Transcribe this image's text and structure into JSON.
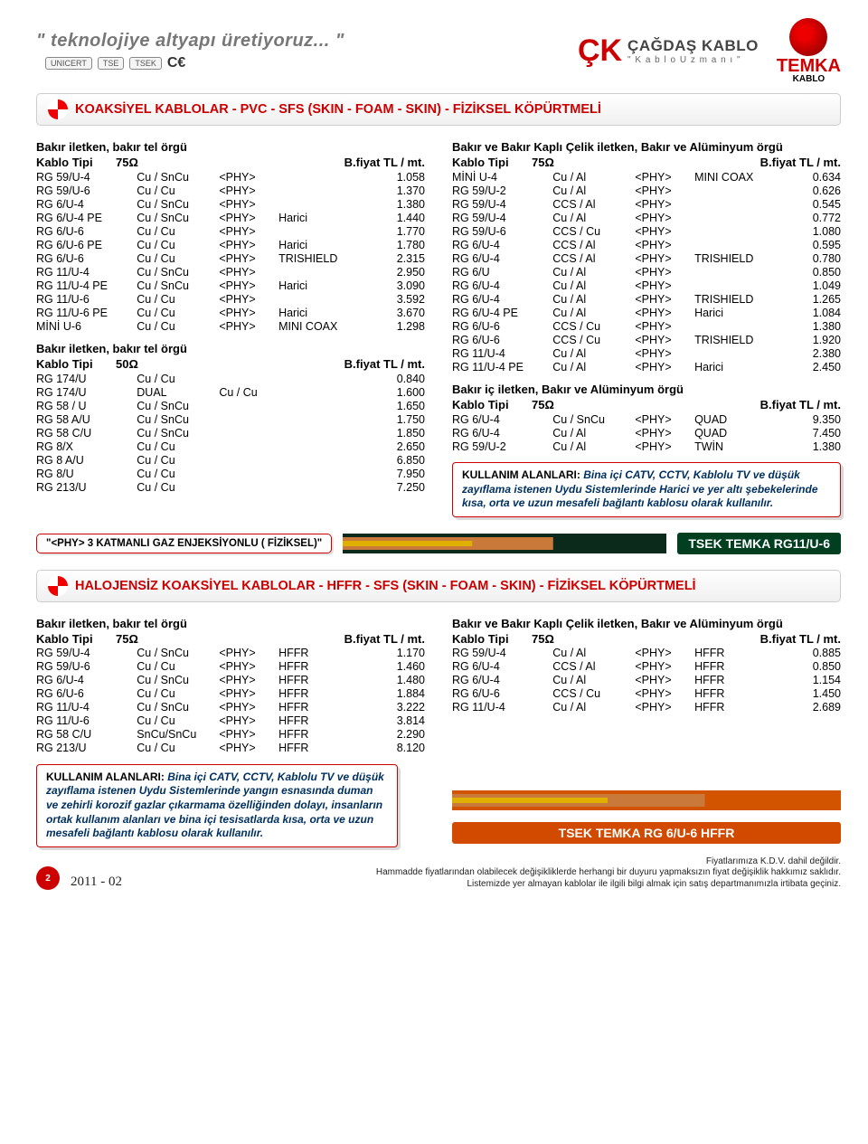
{
  "tagline": "\" teknolojiye altyapı üretiyoruz... \"",
  "logos": {
    "ck_main": "ÇAĞDAŞ KABLO",
    "ck_sub": "\" K a b l o  U z m a n ı \"",
    "temka": "TEMKA",
    "temka_sub": "KABLO",
    "certs": [
      "UNICERT",
      "TSE",
      "TSEK"
    ],
    "ce": "C€"
  },
  "section1": {
    "title": "KOAKSİYEL KABLOLAR - PVC - SFS (SKIN - FOAM - SKIN) - FİZİKSEL KÖPÜRTMELİ",
    "left_a": {
      "sub": "Bakır iletken, bakır tel örgü",
      "hdr_c1": "Kablo Tipi",
      "hdr_c2": "75Ω",
      "hdr_c3": "B.fiyat TL / mt.",
      "rows": [
        [
          "RG 59/U-4",
          "Cu / SnCu",
          "<PHY>",
          "",
          "1.058"
        ],
        [
          "RG 59/U-6",
          "Cu / Cu",
          "<PHY>",
          "",
          "1.370"
        ],
        [
          "RG 6/U-4",
          "Cu / SnCu",
          "<PHY>",
          "",
          "1.380"
        ],
        [
          "RG 6/U-4 PE",
          "Cu / SnCu",
          "<PHY>",
          "Harici",
          "1.440"
        ],
        [
          "RG 6/U-6",
          "Cu / Cu",
          "<PHY>",
          "",
          "1.770"
        ],
        [
          "RG 6/U-6 PE",
          "Cu / Cu",
          "<PHY>",
          "Harici",
          "1.780"
        ],
        [
          "RG 6/U-6",
          "Cu / Cu",
          "<PHY>",
          "TRISHIELD",
          "2.315"
        ],
        [
          "RG 11/U-4",
          "Cu / SnCu",
          "<PHY>",
          "",
          "2.950"
        ],
        [
          "RG 11/U-4 PE",
          "Cu / SnCu",
          "<PHY>",
          "Harici",
          "3.090"
        ],
        [
          "RG 11/U-6",
          "Cu / Cu",
          "<PHY>",
          "",
          "3.592"
        ],
        [
          "RG 11/U-6 PE",
          "Cu / Cu",
          "<PHY>",
          "Harici",
          "3.670"
        ],
        [
          "MİNİ U-6",
          "Cu / Cu",
          "<PHY>",
          "MINI COAX",
          "1.298"
        ]
      ]
    },
    "left_b": {
      "sub": "Bakır iletken, bakır tel örgü",
      "hdr_c1": "Kablo Tipi",
      "hdr_c2": "50Ω",
      "hdr_c3": "B.fiyat TL / mt.",
      "rows": [
        [
          "RG 174/U",
          "Cu / Cu",
          "",
          "",
          "0.840"
        ],
        [
          "RG 174/U",
          "DUAL",
          "Cu / Cu",
          "",
          "1.600"
        ],
        [
          "RG 58 / U",
          "Cu / SnCu",
          "",
          "",
          "1.650"
        ],
        [
          "RG 58 A/U",
          "Cu / SnCu",
          "",
          "",
          "1.750"
        ],
        [
          "RG 58 C/U",
          "Cu / SnCu",
          "",
          "",
          "1.850"
        ],
        [
          "RG 8/X",
          "Cu / Cu",
          "",
          "",
          "2.650"
        ],
        [
          "RG 8 A/U",
          "Cu / Cu",
          "",
          "",
          "6.850"
        ],
        [
          "RG 8/U",
          "Cu / Cu",
          "",
          "",
          "7.950"
        ],
        [
          "RG 213/U",
          "Cu / Cu",
          "",
          "",
          "7.250"
        ]
      ]
    },
    "right_a": {
      "sub": "Bakır ve Bakır Kaplı Çelik iletken, Bakır ve Alüminyum örgü",
      "hdr_c1": "Kablo Tipi",
      "hdr_c2": "75Ω",
      "hdr_c3": "B.fiyat TL / mt.",
      "rows": [
        [
          "MİNİ U-4",
          "Cu / Al",
          "<PHY>",
          "MINI COAX",
          "0.634"
        ],
        [
          "RG 59/U-2",
          "Cu / Al",
          "<PHY>",
          "",
          "0.626"
        ],
        [
          "RG 59/U-4",
          "CCS / Al",
          "<PHY>",
          "",
          "0.545"
        ],
        [
          "RG 59/U-4",
          "Cu / Al",
          "<PHY>",
          "",
          "0.772"
        ],
        [
          "RG 59/U-6",
          "CCS / Cu",
          "<PHY>",
          "",
          "1.080"
        ],
        [
          "RG 6/U-4",
          "CCS / Al",
          "<PHY>",
          "",
          "0.595"
        ],
        [
          "RG 6/U-4",
          "CCS / Al",
          "<PHY>",
          "TRISHIELD",
          "0.780"
        ],
        [
          "RG 6/U",
          "Cu / Al",
          "<PHY>",
          "",
          "0.850"
        ],
        [
          "RG 6/U-4",
          "Cu / Al",
          "<PHY>",
          "",
          "1.049"
        ],
        [
          "RG 6/U-4",
          "Cu / Al",
          "<PHY>",
          "TRISHIELD",
          "1.265"
        ],
        [
          "RG 6/U-4 PE",
          "Cu / Al",
          "<PHY>",
          "Harici",
          "1.084"
        ],
        [
          "RG 6/U-6",
          "CCS / Cu",
          "<PHY>",
          "",
          "1.380"
        ],
        [
          "RG 6/U-6",
          "CCS / Cu",
          "<PHY>",
          "TRISHIELD",
          "1.920"
        ],
        [
          "RG 11/U-4",
          "Cu / Al",
          "<PHY>",
          "",
          "2.380"
        ],
        [
          "RG 11/U-4 PE",
          "Cu / Al",
          "<PHY>",
          "Harici",
          "2.450"
        ]
      ]
    },
    "right_b": {
      "sub": "Bakır iç iletken, Bakır ve Alüminyum örgü",
      "hdr_c1": "Kablo Tipi",
      "hdr_c2": "75Ω",
      "hdr_c3": "B.fiyat TL / mt.",
      "rows": [
        [
          "RG 6/U-4",
          "Cu / SnCu",
          "<PHY>",
          "QUAD",
          "9.350"
        ],
        [
          "RG 6/U-4",
          "Cu / Al",
          "<PHY>",
          "QUAD",
          "7.450"
        ],
        [
          "RG 59/U-2",
          "Cu / Al",
          "<PHY>",
          "TWİN",
          "1.380"
        ]
      ]
    },
    "usage": {
      "title": "KULLANIM ALANLARI:",
      "body": "Bina içi CATV, CCTV, Kablolu TV ve düşük zayıflama istenen Uydu Sistemlerinde Harici ve yer altı şebekelerinde kısa, orta ve uzun mesafeli bağlantı kablosu olarak kullanılır."
    }
  },
  "cable1": {
    "phy": "\"<PHY> 3 KATMANLI GAZ ENJEKSİYONLU ( FİZİKSEL)\"",
    "label": "TSEK TEMKA RG11/U-6",
    "colors": {
      "jacket": "#0b2a1b",
      "braid": "#c97a3a",
      "core": "#e0b000"
    }
  },
  "section2": {
    "title": "HALOJENSİZ KOAKSİYEL KABLOLAR - HFFR - SFS (SKIN - FOAM - SKIN) - FİZİKSEL KÖPÜRTMELİ",
    "left": {
      "sub": "Bakır iletken, bakır tel örgü",
      "hdr_c1": "Kablo Tipi",
      "hdr_c2": "75Ω",
      "hdr_c3": "B.fiyat TL / mt.",
      "rows": [
        [
          "RG 59/U-4",
          "Cu / SnCu",
          "<PHY>",
          "HFFR",
          "1.170"
        ],
        [
          "RG 59/U-6",
          "Cu / Cu",
          "<PHY>",
          "HFFR",
          "1.460"
        ],
        [
          "RG 6/U-4",
          "Cu / SnCu",
          "<PHY>",
          "HFFR",
          "1.480"
        ],
        [
          "RG 6/U-6",
          "Cu / Cu",
          "<PHY>",
          "HFFR",
          "1.884"
        ],
        [
          "RG 11/U-4",
          "Cu / SnCu",
          "<PHY>",
          "HFFR",
          "3.222"
        ],
        [
          "RG 11/U-6",
          "Cu / Cu",
          "<PHY>",
          "HFFR",
          "3.814"
        ],
        [
          "RG 58 C/U",
          "SnCu/SnCu",
          "<PHY>",
          "HFFR",
          "2.290"
        ],
        [
          "RG 213/U",
          "Cu / Cu",
          "<PHY>",
          "HFFR",
          "8.120"
        ]
      ]
    },
    "right": {
      "sub": "Bakır ve Bakır Kaplı Çelik iletken, Bakır ve Alüminyum örgü",
      "hdr_c1": "Kablo Tipi",
      "hdr_c2": "75Ω",
      "hdr_c3": "B.fiyat TL / mt.",
      "rows": [
        [
          "RG 59/U-4",
          "Cu / Al",
          "<PHY>",
          "HFFR",
          "0.885"
        ],
        [
          "RG 6/U-4",
          "CCS / Al",
          "<PHY>",
          "HFFR",
          "0.850"
        ],
        [
          "RG 6/U-4",
          "Cu / Al",
          "<PHY>",
          "HFFR",
          "1.154"
        ],
        [
          "RG 6/U-6",
          "CCS / Cu",
          "<PHY>",
          "HFFR",
          "1.450"
        ],
        [
          "RG 11/U-4",
          "Cu / Al",
          "<PHY>",
          "HFFR",
          "2.689"
        ]
      ]
    },
    "usage": {
      "title": "KULLANIM ALANLARI:",
      "body": "Bina içi CATV, CCTV, Kablolu TV ve düşük zayıflama istenen Uydu Sistemlerinde yangın esnasında duman ve zehirli korozif gazlar çıkarmama özelliğinden dolayı, insanların ortak kullanım alanları ve bina içi tesisatlarda kısa, orta ve uzun mesafeli bağlantı kablosu olarak kullanılır."
    }
  },
  "cable2": {
    "label": "TSEK TEMKA RG 6/U-6 HFFR",
    "colors": {
      "jacket": "#d35400",
      "braid": "#c97a3a",
      "core": "#e0b000"
    }
  },
  "footer": {
    "page": "2",
    "edition": "2011 - 02",
    "l1": "Fiyatlarımıza K.D.V. dahil değildir.",
    "l2": "Hammadde fiyatlarından olabilecek değişikliklerde herhangi bir duyuru yapmaksızın fiyat değişiklik hakkımız saklıdır.",
    "l3": "Listemizde yer almayan kablolar ile ilgili bilgi almak için satış departmanımızla irtibata geçiniz."
  }
}
